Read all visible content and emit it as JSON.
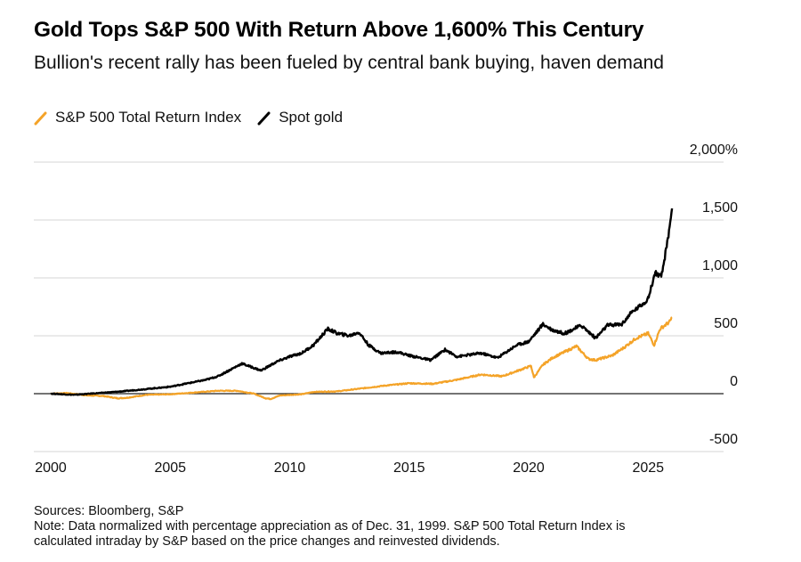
{
  "header": {
    "title": "Gold Tops S&P 500 With Return Above 1,600% This Century",
    "subtitle": "Bullion's recent rally has been fueled by central bank buying, haven demand"
  },
  "legend": [
    {
      "label": "S&P 500 Total Return Index",
      "color": "#f4a328"
    },
    {
      "label": "Spot gold",
      "color": "#000000"
    }
  ],
  "footer": {
    "sources": "Sources: Bloomberg, S&P",
    "note_line1": "Note: Data normalized with percentage appreciation as of Dec. 31, 1999. S&P 500 Total Return Index is",
    "note_line2": "calculated intraday by S&P based on the price changes and reinvested dividends."
  },
  "chart_data": {
    "type": "line",
    "xlim": [
      2000,
      2026
    ],
    "ylim": [
      -500,
      2000
    ],
    "x_ticks": [
      2000,
      2005,
      2010,
      2015,
      2020,
      2025
    ],
    "x_tick_labels": [
      "2000",
      "2005",
      "2010",
      "2015",
      "2020",
      "2025"
    ],
    "y_ticks": [
      2000,
      1500,
      1000,
      500,
      0,
      -500
    ],
    "y_tick_labels": [
      "2,000%",
      "1,500",
      "1,000",
      "500",
      "0",
      "-500"
    ],
    "grid": true,
    "legend_position": "top-left",
    "series": [
      {
        "name": "S&P 500 Total Return Index",
        "color": "#f4a328",
        "points": [
          [
            2000.0,
            0
          ],
          [
            2000.7,
            5
          ],
          [
            2001.5,
            -15
          ],
          [
            2002.2,
            -20
          ],
          [
            2002.8,
            -40
          ],
          [
            2003.2,
            -35
          ],
          [
            2004.0,
            -10
          ],
          [
            2005.0,
            -5
          ],
          [
            2006.0,
            10
          ],
          [
            2007.0,
            25
          ],
          [
            2007.8,
            25
          ],
          [
            2008.5,
            0
          ],
          [
            2009.0,
            -40
          ],
          [
            2009.2,
            -45
          ],
          [
            2009.6,
            -15
          ],
          [
            2010.5,
            -5
          ],
          [
            2011.0,
            15
          ],
          [
            2012.0,
            20
          ],
          [
            2013.0,
            45
          ],
          [
            2014.0,
            70
          ],
          [
            2015.0,
            90
          ],
          [
            2016.0,
            85
          ],
          [
            2017.0,
            120
          ],
          [
            2018.0,
            165
          ],
          [
            2018.9,
            150
          ],
          [
            2019.5,
            195
          ],
          [
            2020.1,
            240
          ],
          [
            2020.22,
            140
          ],
          [
            2020.6,
            250
          ],
          [
            2021.0,
            310
          ],
          [
            2021.5,
            360
          ],
          [
            2022.0,
            410
          ],
          [
            2022.5,
            300
          ],
          [
            2022.8,
            290
          ],
          [
            2023.5,
            330
          ],
          [
            2024.0,
            400
          ],
          [
            2024.5,
            480
          ],
          [
            2025.0,
            520
          ],
          [
            2025.25,
            420
          ],
          [
            2025.5,
            560
          ],
          [
            2025.9,
            620
          ],
          [
            2026.0,
            660
          ]
        ]
      },
      {
        "name": "Spot gold",
        "color": "#000000",
        "points": [
          [
            2000.0,
            0
          ],
          [
            2001.0,
            -10
          ],
          [
            2002.0,
            5
          ],
          [
            2003.0,
            20
          ],
          [
            2004.0,
            40
          ],
          [
            2005.0,
            60
          ],
          [
            2006.0,
            100
          ],
          [
            2006.5,
            120
          ],
          [
            2007.0,
            150
          ],
          [
            2008.0,
            260
          ],
          [
            2008.8,
            200
          ],
          [
            2009.5,
            280
          ],
          [
            2010.0,
            320
          ],
          [
            2010.5,
            350
          ],
          [
            2011.0,
            420
          ],
          [
            2011.6,
            560
          ],
          [
            2012.0,
            520
          ],
          [
            2012.5,
            500
          ],
          [
            2012.9,
            530
          ],
          [
            2013.3,
            420
          ],
          [
            2013.8,
            350
          ],
          [
            2014.5,
            360
          ],
          [
            2015.0,
            330
          ],
          [
            2015.9,
            290
          ],
          [
            2016.5,
            380
          ],
          [
            2017.0,
            320
          ],
          [
            2018.0,
            350
          ],
          [
            2018.7,
            310
          ],
          [
            2019.5,
            420
          ],
          [
            2020.0,
            450
          ],
          [
            2020.6,
            600
          ],
          [
            2021.0,
            550
          ],
          [
            2021.5,
            520
          ],
          [
            2022.2,
            590
          ],
          [
            2022.8,
            480
          ],
          [
            2023.3,
            590
          ],
          [
            2023.9,
            600
          ],
          [
            2024.3,
            700
          ],
          [
            2024.8,
            780
          ],
          [
            2025.0,
            820
          ],
          [
            2025.3,
            1050
          ],
          [
            2025.55,
            1000
          ],
          [
            2025.8,
            1300
          ],
          [
            2026.0,
            1600
          ]
        ]
      }
    ]
  }
}
